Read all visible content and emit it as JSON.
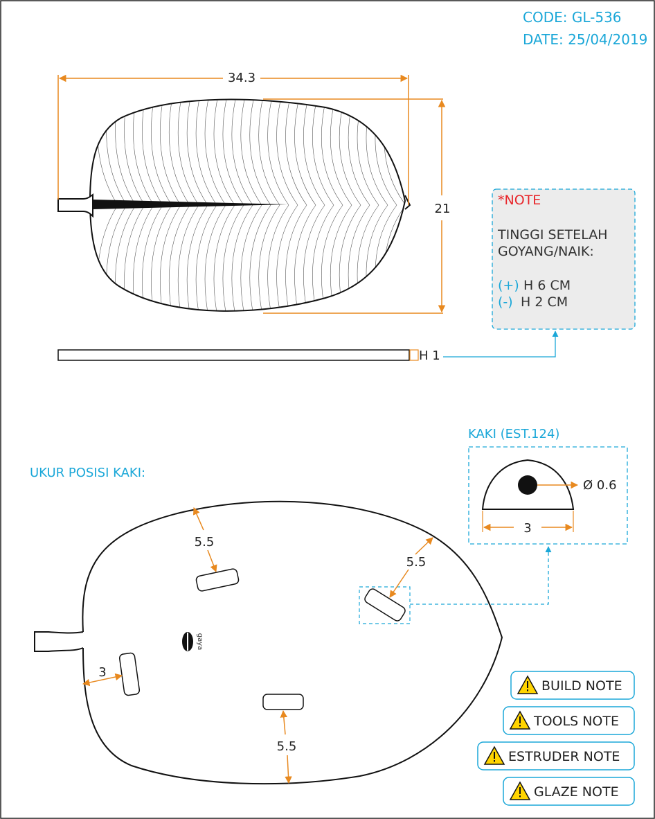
{
  "header": {
    "code": "CODE: GL-536",
    "date": "DATE: 25/04/2019"
  },
  "top_view": {
    "width_label": "34.3",
    "height_label": "21",
    "thickness_label": "H 1"
  },
  "note": {
    "title": "*NOTE",
    "line1": "TINGGI SETELAH",
    "line2": "GOYANG/NAIK:",
    "plus_sign": "(+)",
    "plus_text": "H 6 CM",
    "minus_sign": "(-)",
    "minus_text": "H 2 CM"
  },
  "foot": {
    "title": "KAKI (EST.124)",
    "diameter_label": "Ø 0.6",
    "width_label": "3"
  },
  "positions": {
    "title": "UKUR POSISI KAKI:",
    "top_left_label": "5.5",
    "top_right_label": "5.5",
    "bottom_label": "5.5",
    "left_label": "3",
    "logo_text": "gaya"
  },
  "buttons": {
    "build": "BUILD NOTE",
    "tools": "TOOLS NOTE",
    "estruder": "ESTRUDER NOTE",
    "glaze": "GLAZE NOTE"
  },
  "colors": {
    "dimension": "#e8891f",
    "accent": "#1aa7d8",
    "note_red": "#e8262b",
    "note_bg": "#ececec",
    "warning_yellow": "#ffd400"
  }
}
